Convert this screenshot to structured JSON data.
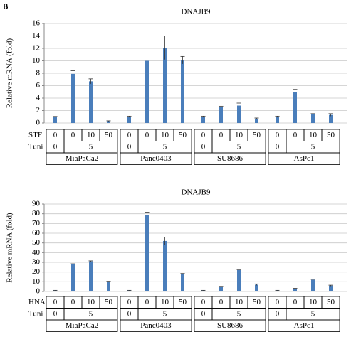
{
  "panel_label": "B",
  "chart_data": [
    {
      "type": "bar",
      "title": "DNAJB9",
      "y_label": "Relative mRNA (fold)",
      "color": "#4a7ebb",
      "ylim": [
        0,
        16
      ],
      "yticks": [
        0,
        2,
        4,
        6,
        8,
        10,
        12,
        14,
        16
      ],
      "grid": true,
      "values": [
        1.0,
        7.9,
        6.7,
        0.3,
        1.0,
        10.0,
        12.1,
        10.1,
        1.0,
        2.6,
        2.8,
        0.7,
        1.0,
        5.0,
        1.4,
        1.3
      ],
      "errors": [
        0.05,
        0.5,
        0.4,
        0.05,
        0.1,
        0.1,
        1.9,
        0.6,
        0.1,
        0.1,
        0.4,
        0.1,
        0.1,
        0.4,
        0.1,
        0.2
      ],
      "row_labels": [
        "STF",
        "Tuni"
      ],
      "groups": [
        {
          "name": "MiaPaCa2",
          "drug": [
            "0",
            "0",
            "10",
            "50"
          ],
          "tuni": [
            "0",
            "5"
          ]
        },
        {
          "name": "Panc0403",
          "drug": [
            "0",
            "0",
            "10",
            "50"
          ],
          "tuni": [
            "0",
            "5"
          ]
        },
        {
          "name": "SU8686",
          "drug": [
            "0",
            "0",
            "10",
            "50"
          ],
          "tuni": [
            "0",
            "5"
          ]
        },
        {
          "name": "AsPc1",
          "drug": [
            "0",
            "0",
            "10",
            "50"
          ],
          "tuni": [
            "0",
            "5"
          ]
        }
      ]
    },
    {
      "type": "bar",
      "title": "DNAJB9",
      "y_label": "Relative mRNA (fold)",
      "color": "#4a7ebb",
      "ylim": [
        0,
        90
      ],
      "yticks": [
        0,
        10,
        20,
        30,
        40,
        50,
        60,
        70,
        80,
        90
      ],
      "grid": true,
      "values": [
        1,
        28,
        31,
        10,
        1,
        79,
        52,
        18,
        1,
        5,
        22,
        7,
        1,
        3,
        12,
        6
      ],
      "errors": [
        0.2,
        0.5,
        0.5,
        0.5,
        0.2,
        2.5,
        4,
        0.5,
        0.2,
        0.3,
        0.5,
        0.8,
        0.2,
        0.3,
        0.5,
        0.5
      ],
      "row_labels": [
        "HNA",
        "Tuni"
      ],
      "groups": [
        {
          "name": "MiaPaCa2",
          "drug": [
            "0",
            "0",
            "10",
            "50"
          ],
          "tuni": [
            "0",
            "5"
          ]
        },
        {
          "name": "Panc0403",
          "drug": [
            "0",
            "0",
            "10",
            "50"
          ],
          "tuni": [
            "0",
            "5"
          ]
        },
        {
          "name": "SU8686",
          "drug": [
            "0",
            "0",
            "10",
            "50"
          ],
          "tuni": [
            "0",
            "5"
          ]
        },
        {
          "name": "AsPc1",
          "drug": [
            "0",
            "0",
            "10",
            "50"
          ],
          "tuni": [
            "0",
            "5"
          ]
        }
      ]
    }
  ]
}
